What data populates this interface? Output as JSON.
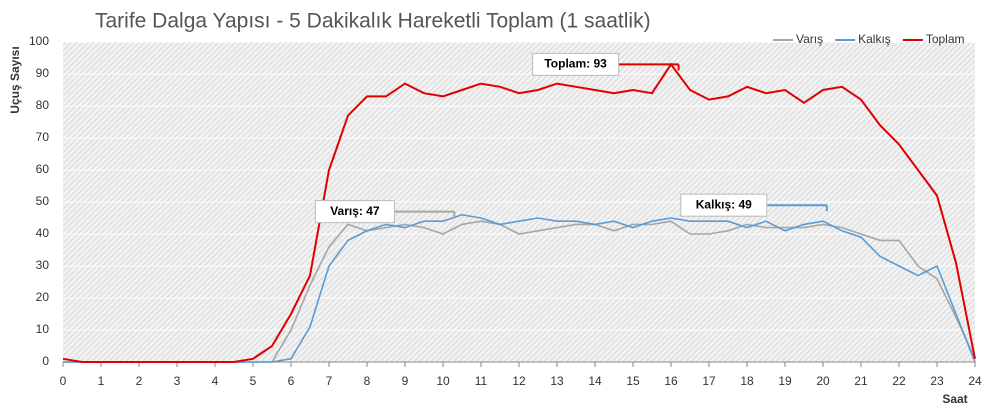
{
  "chart_data": {
    "type": "line",
    "title": "Tarife Dalga Yapısı - 5 Dakikalık Hareketli Toplam (1 saatlik)",
    "x_label": "Saat",
    "y_label": "Uçuş Sayısı",
    "x": [
      0,
      0.5,
      1,
      1.5,
      2,
      2.5,
      3,
      3.5,
      4,
      4.5,
      5,
      5.5,
      6,
      6.5,
      7,
      7.5,
      8,
      8.5,
      9,
      9.5,
      10,
      10.5,
      11,
      11.5,
      12,
      12.5,
      13,
      13.5,
      14,
      14.5,
      15,
      15.5,
      16,
      16.5,
      17,
      17.5,
      18,
      18.5,
      19,
      19.5,
      20,
      20.5,
      21,
      21.5,
      22,
      22.5,
      23,
      23.5,
      24
    ],
    "series": [
      {
        "name": "Varış",
        "color": "#a6a6a6",
        "values": [
          0,
          0,
          0,
          0,
          0,
          0,
          0,
          0,
          0,
          0,
          0,
          0,
          10,
          24,
          36,
          43,
          41,
          42,
          43,
          42,
          40,
          43,
          44,
          43,
          40,
          41,
          42,
          43,
          43,
          41,
          43,
          43,
          44,
          40,
          40,
          41,
          43,
          42,
          42,
          42,
          43,
          42,
          40,
          38,
          38,
          30,
          26,
          14,
          1
        ]
      },
      {
        "name": "Kalkış",
        "color": "#5b9bd5",
        "values": [
          0,
          0,
          0,
          0,
          0,
          0,
          0,
          0,
          0,
          0,
          0,
          0,
          1,
          11,
          30,
          38,
          41,
          43,
          42,
          44,
          44,
          46,
          45,
          43,
          44,
          45,
          44,
          44,
          43,
          44,
          42,
          44,
          45,
          44,
          44,
          44,
          42,
          44,
          41,
          43,
          44,
          41,
          39,
          33,
          30,
          27,
          30,
          15,
          0
        ]
      },
      {
        "name": "Toplam",
        "color": "#e00000",
        "values": [
          1,
          0,
          0,
          0,
          0,
          0,
          0,
          0,
          0,
          0,
          1,
          5,
          15,
          27,
          60,
          77,
          83,
          83,
          87,
          84,
          83,
          85,
          87,
          86,
          84,
          85,
          87,
          86,
          85,
          84,
          85,
          84,
          93,
          85,
          82,
          83,
          86,
          84,
          85,
          81,
          85,
          86,
          82,
          74,
          68,
          60,
          52,
          31,
          1
        ]
      }
    ],
    "annotations": [
      {
        "label": "Varış: 47",
        "x": 10.3,
        "y": 47
      },
      {
        "label": "Toplam: 93",
        "x": 16.2,
        "y": 93
      },
      {
        "label": "Kalkış: 49",
        "x": 20.1,
        "y": 49
      }
    ],
    "xlim": [
      0,
      24
    ],
    "xticks": [
      0,
      1,
      2,
      3,
      4,
      5,
      6,
      7,
      8,
      9,
      10,
      11,
      12,
      13,
      14,
      15,
      16,
      17,
      18,
      19,
      20,
      21,
      22,
      23,
      24
    ],
    "ylim": [
      0,
      100
    ],
    "yticks": [
      0,
      10,
      20,
      30,
      40,
      50,
      60,
      70,
      80,
      90,
      100
    ],
    "grid": true,
    "legend": "top-right"
  }
}
